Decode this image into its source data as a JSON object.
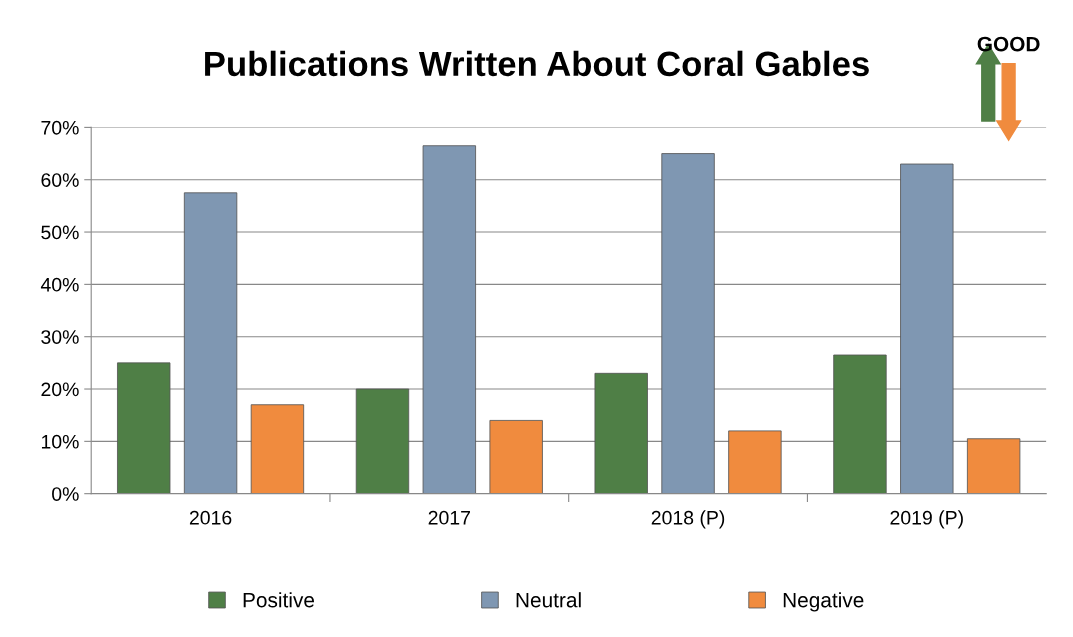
{
  "chart_data": {
    "type": "bar",
    "title": "Publications Written About Coral Gables",
    "categories": [
      "2016",
      "2017",
      "2018 (P)",
      "2019 (P)"
    ],
    "series": [
      {
        "name": "Positive",
        "color": "#4f7f46",
        "values": [
          25,
          20,
          23,
          26.5
        ]
      },
      {
        "name": "Neutral",
        "color": "#7f97b2",
        "values": [
          57.5,
          66.5,
          65,
          63
        ]
      },
      {
        "name": "Negative",
        "color": "#f08b3e",
        "values": [
          17,
          14,
          12,
          10.5
        ]
      }
    ],
    "ylim": [
      0,
      70
    ],
    "yticks": [
      {
        "value": 0,
        "label": "0%"
      },
      {
        "value": 10,
        "label": "10%"
      },
      {
        "value": 20,
        "label": "20%"
      },
      {
        "value": 30,
        "label": "30%"
      },
      {
        "value": 40,
        "label": "40%"
      },
      {
        "value": 50,
        "label": "50%"
      },
      {
        "value": 60,
        "label": "60%"
      },
      {
        "value": 70,
        "label": "70%"
      }
    ],
    "grid": "y",
    "legend": "bottom",
    "annotations": [
      "GOOD"
    ]
  }
}
